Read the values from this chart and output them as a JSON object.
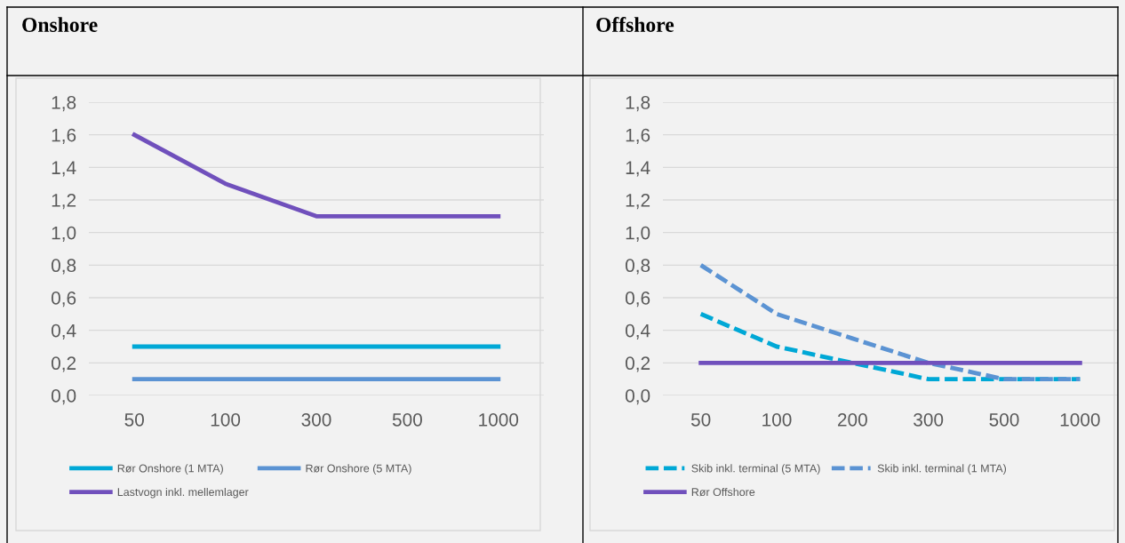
{
  "chart_data": [
    {
      "type": "line",
      "title": "Onshore",
      "categories": [
        "50",
        "100",
        "300",
        "500",
        "1000"
      ],
      "series": [
        {
          "name": "Rør Onshore (1 MTA)",
          "color": "#00a8d6",
          "values": [
            0.3,
            0.3,
            0.3,
            0.3,
            0.3
          ],
          "line_style": "solid"
        },
        {
          "name": "Rør Onshore (5 MTA)",
          "color": "#5b93d3",
          "values": [
            0.1,
            0.1,
            0.1,
            0.1,
            0.1
          ],
          "line_style": "solid"
        },
        {
          "name": "Lastvogn inkl. mellemlager",
          "color": "#7050bc",
          "values": [
            1.6,
            1.3,
            1.1,
            1.1,
            1.1
          ],
          "line_style": "solid"
        }
      ],
      "ylim": [
        0,
        1.8
      ],
      "yticks": [
        {
          "value": 0,
          "label": "0,0"
        },
        {
          "value": 0.2,
          "label": "0,2"
        },
        {
          "value": 0.4,
          "label": "0,4"
        },
        {
          "value": 0.6,
          "label": "0,6"
        },
        {
          "value": 0.8,
          "label": "0,8"
        },
        {
          "value": 1.0,
          "label": "1,0"
        },
        {
          "value": 1.2,
          "label": "1,2"
        },
        {
          "value": 1.4,
          "label": "1,4"
        },
        {
          "value": 1.6,
          "label": "1,6"
        },
        {
          "value": 1.8,
          "label": "1,8"
        }
      ],
      "grid": "y",
      "legend": "bottom",
      "marker": "none"
    },
    {
      "type": "line",
      "title": "Offshore",
      "categories": [
        "50",
        "100",
        "200",
        "300",
        "500",
        "1000"
      ],
      "series": [
        {
          "name": "Skib inkl. terminal (5 MTA)",
          "color": "#00a8d6",
          "values": [
            0.5,
            0.3,
            0.2,
            0.1,
            0.1,
            0.1
          ],
          "line_style": "dashed"
        },
        {
          "name": "Skib inkl. terminal (1 MTA)",
          "color": "#5b93d3",
          "values": [
            0.8,
            0.5,
            0.35,
            0.2,
            0.1,
            0.1
          ],
          "line_style": "dashed"
        },
        {
          "name": "Rør Offshore",
          "color": "#7050bc",
          "values": [
            0.2,
            0.2,
            0.2,
            0.2,
            0.2,
            0.2
          ],
          "line_style": "solid"
        }
      ],
      "ylim": [
        0,
        1.8
      ],
      "yticks": [
        {
          "value": 0,
          "label": "0,0"
        },
        {
          "value": 0.2,
          "label": "0,2"
        },
        {
          "value": 0.4,
          "label": "0,4"
        },
        {
          "value": 0.6,
          "label": "0,6"
        },
        {
          "value": 0.8,
          "label": "0,8"
        },
        {
          "value": 1.0,
          "label": "1,0"
        },
        {
          "value": 1.2,
          "label": "1,2"
        },
        {
          "value": 1.4,
          "label": "1,4"
        },
        {
          "value": 1.6,
          "label": "1,6"
        },
        {
          "value": 1.8,
          "label": "1,8"
        }
      ],
      "grid": "y",
      "legend": "bottom",
      "marker": "none"
    }
  ]
}
